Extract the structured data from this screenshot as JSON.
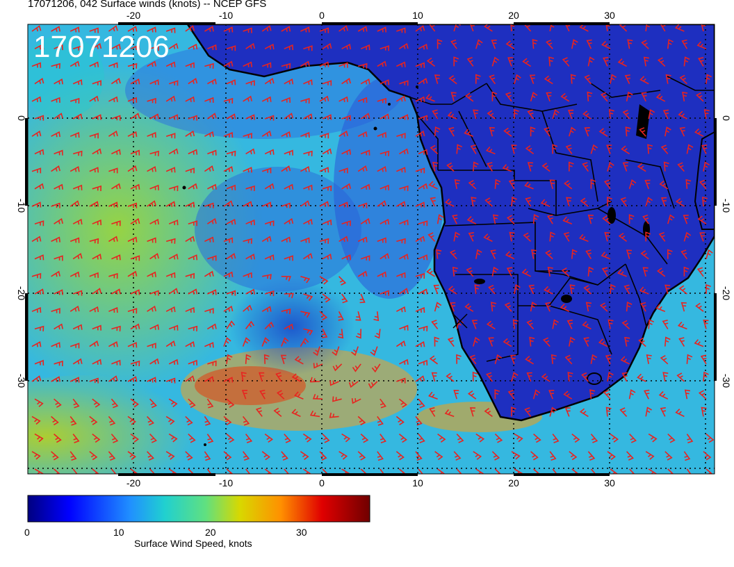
{
  "title": "17071206, 042 Surface winds (knots) -- NCEP GFS",
  "stamp": "17071206",
  "axes": {
    "lon_ticks": [
      "-20",
      "-10",
      "0",
      "10",
      "20",
      "30"
    ],
    "lat_ticks": [
      "0",
      "-10",
      "-20",
      "-30"
    ]
  },
  "colorbar": {
    "title": "Surface Wind Speed, knots",
    "ticks": [
      "0",
      "10",
      "20",
      "30"
    ],
    "range": [
      0,
      36
    ]
  },
  "colors": {
    "ocean_strong": "#29c4d8",
    "ocean_moderate": "#3aa0e8",
    "land": "#1a2ec8",
    "barb": "#e8231f",
    "high_wind": "#f0a020",
    "very_high_wind": "#d02818"
  }
}
